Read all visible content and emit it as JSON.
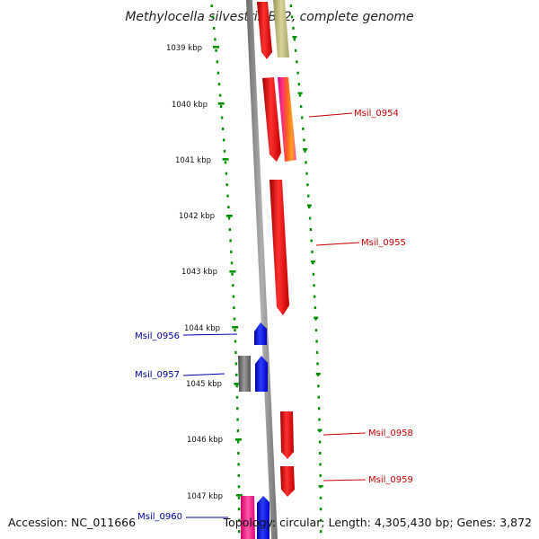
{
  "title": "Methylocella silvestris BL2, complete genome",
  "ruler_ticks": [
    "1039 kbp",
    "1040 kbp",
    "1041 kbp",
    "1042 kbp",
    "1043 kbp",
    "1044 kbp",
    "1045 kbp",
    "1046 kbp",
    "1047 kbp"
  ],
  "genes": {
    "msil_0954": "Msil_0954",
    "msil_0955": "Msil_0955",
    "msil_0956": "Msil_0956",
    "msil_0957": "Msil_0957",
    "msil_0958": "Msil_0958",
    "msil_0959": "Msil_0959",
    "msil_0960": "Msil_0960"
  },
  "footer": {
    "accession": "Accession: NC_011666",
    "topology": "Topology: circular; Length: 4,305,430 bp; Genes: 3,872"
  },
  "colors": {
    "forward_strand": "#ff0000",
    "reverse_strand": "#0000ff",
    "ruler": "#009000",
    "backbone": "#808080",
    "forward_label": "#cc0000",
    "reverse_label": "#0000aa"
  }
}
